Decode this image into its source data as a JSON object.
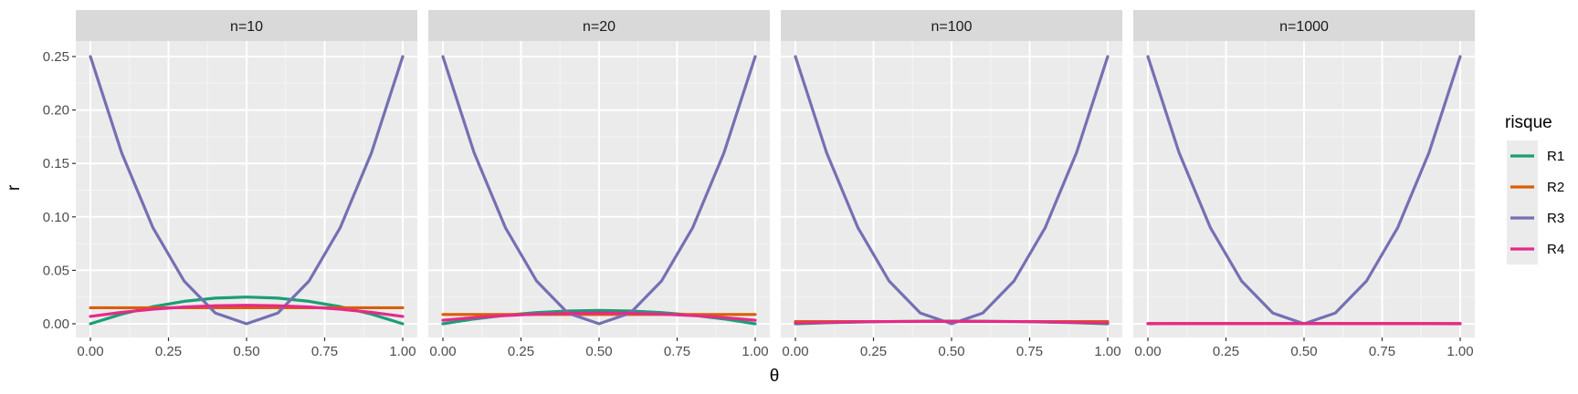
{
  "chart_data": {
    "type": "line",
    "xlabel": "θ",
    "ylabel": "r",
    "xlim": [
      0,
      1
    ],
    "ylim": [
      0,
      0.25
    ],
    "x_ticks": [
      "0.00",
      "0.25",
      "0.50",
      "0.75",
      "1.00"
    ],
    "y_ticks": [
      "0.00",
      "0.05",
      "0.10",
      "0.15",
      "0.20",
      "0.25"
    ],
    "grid": true,
    "legend": {
      "title": "risque",
      "position": "right",
      "entries": [
        {
          "name": "R1",
          "color": "#1B9E77"
        },
        {
          "name": "R2",
          "color": "#D95F02"
        },
        {
          "name": "R3",
          "color": "#7570B3"
        },
        {
          "name": "R4",
          "color": "#E7298A"
        }
      ]
    },
    "panels": [
      {
        "label": "n=10",
        "series": [
          {
            "name": "R1",
            "x": [
              0,
              0.1,
              0.2,
              0.3,
              0.4,
              0.5,
              0.6,
              0.7,
              0.8,
              0.9,
              1.0
            ],
            "y": [
              0,
              0.009,
              0.016,
              0.021,
              0.024,
              0.025,
              0.024,
              0.021,
              0.016,
              0.009,
              0
            ]
          },
          {
            "name": "R2",
            "x": [
              0,
              0.5,
              1.0
            ],
            "y": [
              0.015,
              0.015,
              0.015
            ]
          },
          {
            "name": "R3",
            "x": [
              0,
              0.1,
              0.2,
              0.3,
              0.4,
              0.5,
              0.6,
              0.7,
              0.8,
              0.9,
              1.0
            ],
            "y": [
              0.25,
              0.16,
              0.09,
              0.04,
              0.01,
              0,
              0.01,
              0.04,
              0.09,
              0.16,
              0.25
            ]
          },
          {
            "name": "R4",
            "x": [
              0,
              0.1,
              0.2,
              0.3,
              0.4,
              0.5,
              0.6,
              0.7,
              0.8,
              0.9,
              1.0
            ],
            "y": [
              0.0069,
              0.0107,
              0.0136,
              0.0157,
              0.0169,
              0.0173,
              0.0169,
              0.0157,
              0.0136,
              0.0107,
              0.0069
            ]
          }
        ]
      },
      {
        "label": "n=20",
        "series": [
          {
            "name": "R1",
            "x": [
              0,
              0.1,
              0.2,
              0.3,
              0.4,
              0.5,
              0.6,
              0.7,
              0.8,
              0.9,
              1.0
            ],
            "y": [
              0,
              0.0045,
              0.008,
              0.0105,
              0.012,
              0.0125,
              0.012,
              0.0105,
              0.008,
              0.0045,
              0
            ]
          },
          {
            "name": "R2",
            "x": [
              0,
              0.5,
              1.0
            ],
            "y": [
              0.0087,
              0.0087,
              0.0087
            ]
          },
          {
            "name": "R3",
            "x": [
              0,
              0.1,
              0.2,
              0.3,
              0.4,
              0.5,
              0.6,
              0.7,
              0.8,
              0.9,
              1.0
            ],
            "y": [
              0.25,
              0.16,
              0.09,
              0.04,
              0.01,
              0,
              0.01,
              0.04,
              0.09,
              0.16,
              0.25
            ]
          },
          {
            "name": "R4",
            "x": [
              0,
              0.1,
              0.2,
              0.3,
              0.4,
              0.5,
              0.6,
              0.7,
              0.8,
              0.9,
              1.0
            ],
            "y": [
              0.0033,
              0.0058,
              0.0077,
              0.009,
              0.0098,
              0.01,
              0.0098,
              0.009,
              0.0077,
              0.0058,
              0.0033
            ]
          }
        ]
      },
      {
        "label": "n=100",
        "series": [
          {
            "name": "R1",
            "x": [
              0,
              0.1,
              0.2,
              0.3,
              0.4,
              0.5,
              0.6,
              0.7,
              0.8,
              0.9,
              1.0
            ],
            "y": [
              0,
              0.0009,
              0.0016,
              0.0021,
              0.0024,
              0.0025,
              0.0024,
              0.0021,
              0.0016,
              0.0009,
              0
            ]
          },
          {
            "name": "R2",
            "x": [
              0,
              0.5,
              1.0
            ],
            "y": [
              0.0021,
              0.0021,
              0.0021
            ]
          },
          {
            "name": "R3",
            "x": [
              0,
              0.1,
              0.2,
              0.3,
              0.4,
              0.5,
              0.6,
              0.7,
              0.8,
              0.9,
              1.0
            ],
            "y": [
              0.25,
              0.16,
              0.09,
              0.04,
              0.01,
              0,
              0.01,
              0.04,
              0.09,
              0.16,
              0.25
            ]
          },
          {
            "name": "R4",
            "x": [
              0,
              0.1,
              0.2,
              0.3,
              0.4,
              0.5,
              0.6,
              0.7,
              0.8,
              0.9,
              1.0
            ],
            "y": [
              0.0008,
              0.0013,
              0.0018,
              0.0021,
              0.0022,
              0.0023,
              0.0022,
              0.0021,
              0.0018,
              0.0013,
              0.0008
            ]
          }
        ]
      },
      {
        "label": "n=1000",
        "series": [
          {
            "name": "R1",
            "x": [
              0,
              0.1,
              0.2,
              0.3,
              0.4,
              0.5,
              0.6,
              0.7,
              0.8,
              0.9,
              1.0
            ],
            "y": [
              0,
              0.0001,
              0.0002,
              0.0002,
              0.0002,
              0.0003,
              0.0002,
              0.0002,
              0.0002,
              0.0001,
              0
            ]
          },
          {
            "name": "R2",
            "x": [
              0,
              0.5,
              1.0
            ],
            "y": [
              0.0002,
              0.0002,
              0.0002
            ]
          },
          {
            "name": "R3",
            "x": [
              0,
              0.1,
              0.2,
              0.3,
              0.4,
              0.5,
              0.6,
              0.7,
              0.8,
              0.9,
              1.0
            ],
            "y": [
              0.25,
              0.16,
              0.09,
              0.04,
              0.01,
              0,
              0.01,
              0.04,
              0.09,
              0.16,
              0.25
            ]
          },
          {
            "name": "R4",
            "x": [
              0,
              0.1,
              0.2,
              0.3,
              0.4,
              0.5,
              0.6,
              0.7,
              0.8,
              0.9,
              1.0
            ],
            "y": [
              0.0001,
              0.0001,
              0.0002,
              0.0002,
              0.0002,
              0.0002,
              0.0002,
              0.0002,
              0.0002,
              0.0001,
              0.0001
            ]
          }
        ]
      }
    ]
  }
}
